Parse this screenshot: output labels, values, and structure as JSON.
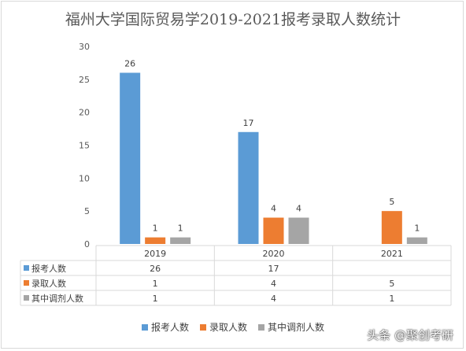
{
  "chart_data": {
    "type": "bar",
    "title": "福州大学国际贸易学2019-2021报考录取人数统计",
    "categories": [
      "2019",
      "2020",
      "2021"
    ],
    "series": [
      {
        "name": "报考人数",
        "color": "#5b9bd5",
        "values": [
          26,
          17,
          null
        ]
      },
      {
        "name": "录取人数",
        "color": "#ed7d31",
        "values": [
          1,
          4,
          5
        ]
      },
      {
        "name": "其中调剂人数",
        "color": "#a5a5a5",
        "values": [
          1,
          4,
          1
        ]
      }
    ],
    "ylim": [
      0,
      30
    ],
    "yticks": [
      0,
      5,
      10,
      15,
      20,
      25,
      30
    ],
    "grid": false,
    "legend": "bottom",
    "data_table": true
  },
  "watermark": "头条 @聚创考研"
}
